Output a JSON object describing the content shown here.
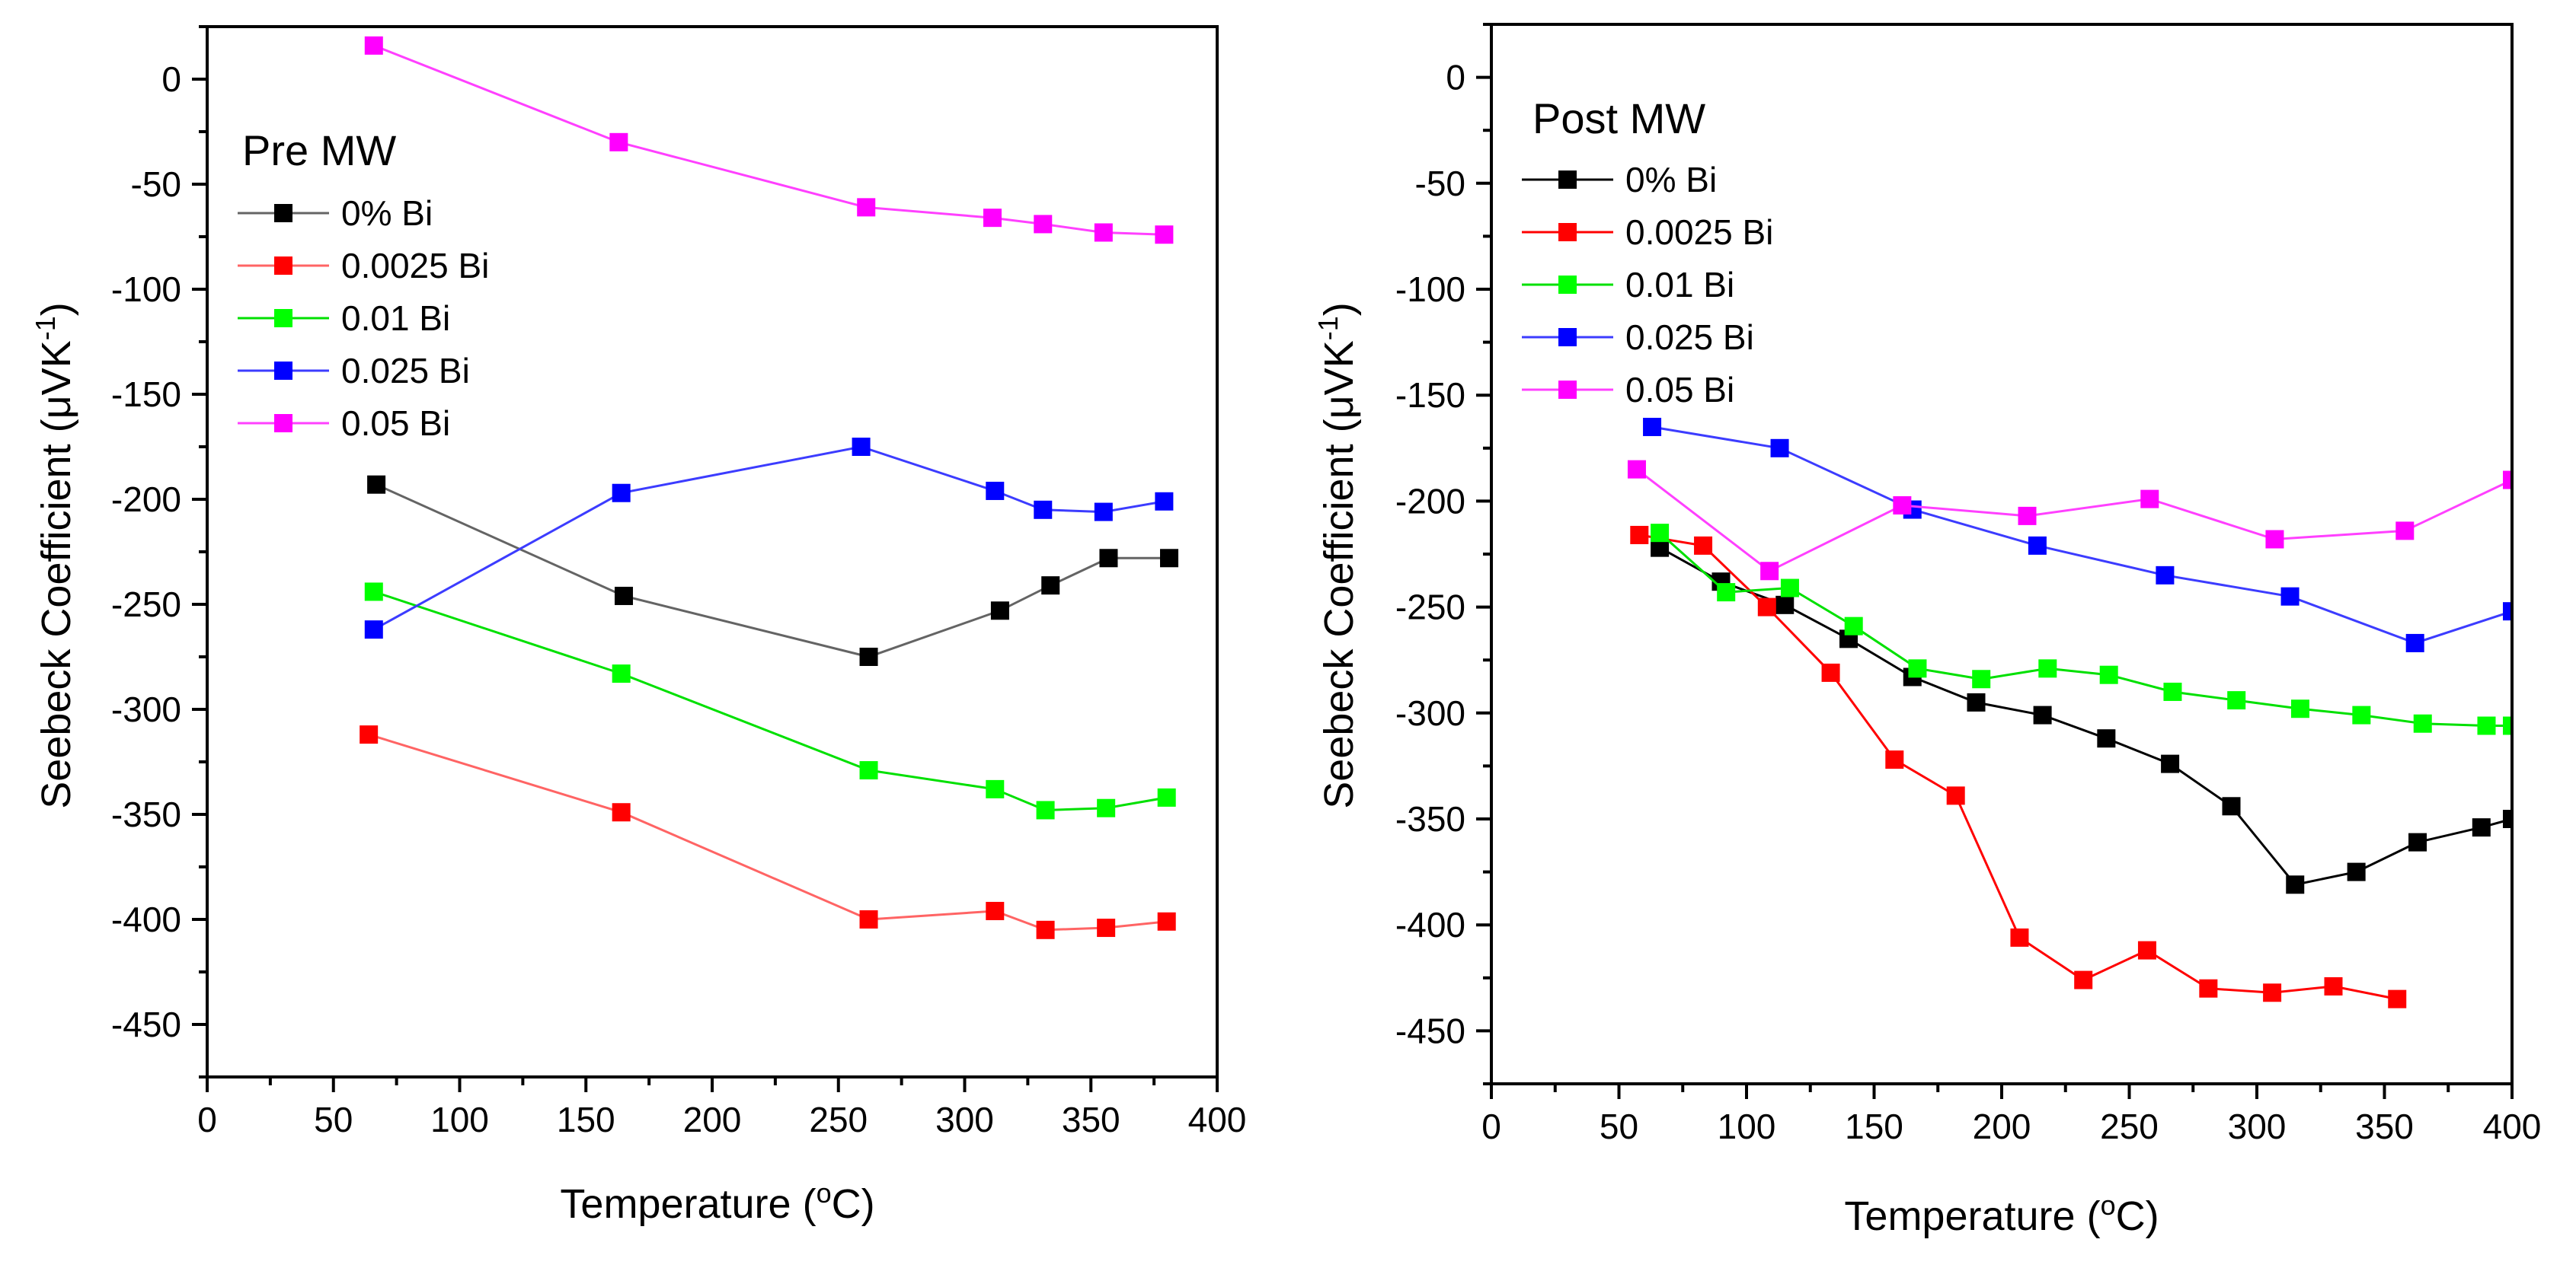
{
  "chart_data": [
    {
      "type": "line",
      "title": "Pre MW",
      "xlabel": "Temperature (",
      "xlabel_sup": "o",
      "xlabel_suffix": "C)",
      "ylabel": "Seebeck Coefficient (μVK",
      "ylabel_sup": "-1",
      "ylabel_suffix": ")",
      "xlim": [
        0,
        400
      ],
      "ylim": [
        -475,
        25
      ],
      "xticks": [
        0,
        50,
        100,
        150,
        200,
        250,
        300,
        350,
        400
      ],
      "xtick_labels": [
        "0",
        "50",
        "100",
        "150",
        "200",
        "250",
        "300",
        "350",
        "400"
      ],
      "yticks": [
        0,
        -50,
        -100,
        -150,
        -200,
        -250,
        -300,
        -350,
        -400,
        -450
      ],
      "ytick_labels": [
        "0",
        "-50",
        "-100",
        "-150",
        "-200",
        "-250",
        "-300",
        "-350",
        "-400",
        "-450"
      ],
      "legend_position": "upper-left",
      "series": [
        {
          "name": "0% Bi",
          "line_color": "#646464",
          "marker_color": "#000000",
          "x": [
            67,
            165,
            262,
            314,
            334,
            357,
            381
          ],
          "y": [
            -193,
            -246,
            -275,
            -253,
            -241,
            -228,
            -228
          ]
        },
        {
          "name": "0.0025 Bi",
          "line_color": "#ff6464",
          "marker_color": "#ff0000",
          "x": [
            64,
            164,
            262,
            312,
            332,
            356,
            380
          ],
          "y": [
            -312,
            -349,
            -400,
            -396,
            -405,
            -404,
            -401
          ]
        },
        {
          "name": "0.01 Bi",
          "line_color": "#00e000",
          "marker_color": "#00ff00",
          "x": [
            66,
            164,
            262,
            312,
            332,
            356,
            380
          ],
          "y": [
            -244,
            -283,
            -329,
            -338,
            -348,
            -347,
            -342
          ]
        },
        {
          "name": "0.025 Bi",
          "line_color": "#3c3cff",
          "marker_color": "#0000ff",
          "x": [
            66,
            164,
            259,
            312,
            331,
            355,
            379
          ],
          "y": [
            -262,
            -197,
            -175,
            -196,
            -205,
            -206,
            -201
          ]
        },
        {
          "name": "0.05 Bi",
          "line_color": "#ff40ff",
          "marker_color": "#ff00ff",
          "x": [
            66,
            163,
            261,
            311,
            331,
            355,
            379
          ],
          "y": [
            16,
            -30,
            -61,
            -66,
            -69,
            -73,
            -74
          ]
        }
      ]
    },
    {
      "type": "line",
      "title": "Post MW",
      "xlabel": "Temperature (",
      "xlabel_sup": "o",
      "xlabel_suffix": "C)",
      "ylabel": "Seebeck Coefficient (μVK",
      "ylabel_sup": "-1",
      "ylabel_suffix": ")",
      "xlim": [
        0,
        400
      ],
      "ylim": [
        -475,
        25
      ],
      "xticks": [
        0,
        50,
        100,
        150,
        200,
        250,
        300,
        350,
        400
      ],
      "xtick_labels": [
        "0",
        "50",
        "100",
        "150",
        "200",
        "250",
        "300",
        "350",
        "400"
      ],
      "yticks": [
        0,
        -50,
        -100,
        -150,
        -200,
        -250,
        -300,
        -350,
        -400,
        -450
      ],
      "ytick_labels": [
        "0",
        "-50",
        "-100",
        "-150",
        "-200",
        "-250",
        "-300",
        "-350",
        "-400",
        "-450"
      ],
      "legend_position": "upper-left",
      "series": [
        {
          "name": "0% Bi",
          "line_color": "#000000",
          "marker_color": "#000000",
          "x": [
            66,
            90,
            115,
            140,
            165,
            190,
            216,
            241,
            266,
            290,
            315,
            339,
            363,
            388,
            400
          ],
          "y": [
            -222,
            -238,
            -249,
            -265,
            -283,
            -295,
            -301,
            -312,
            -324,
            -344,
            -381,
            -375,
            -361,
            -354,
            -350
          ]
        },
        {
          "name": "0.0025 Bi",
          "line_color": "#ff0000",
          "marker_color": "#ff0000",
          "x": [
            58,
            83,
            108,
            133,
            158,
            182,
            207,
            232,
            257,
            281,
            306,
            330,
            355
          ],
          "y": [
            -216,
            -221,
            -250,
            -281,
            -322,
            -339,
            -406,
            -426,
            -412,
            -430,
            -432,
            -429,
            -435
          ]
        },
        {
          "name": "0.01 Bi",
          "line_color": "#00e000",
          "marker_color": "#00ff00",
          "x": [
            66,
            92,
            117,
            142,
            167,
            192,
            218,
            242,
            267,
            292,
            317,
            341,
            365,
            390,
            400
          ],
          "y": [
            -215,
            -243,
            -241,
            -259,
            -279,
            -284,
            -279,
            -282,
            -290,
            -294,
            -298,
            -301,
            -305,
            -306,
            -306
          ]
        },
        {
          "name": "0.025 Bi",
          "line_color": "#3c3cff",
          "marker_color": "#0000ff",
          "x": [
            63,
            113,
            165,
            214,
            264,
            313,
            362,
            400
          ],
          "y": [
            -165,
            -175,
            -204,
            -221,
            -235,
            -245,
            -267,
            -252
          ]
        },
        {
          "name": "0.05 Bi",
          "line_color": "#ff40ff",
          "marker_color": "#ff00ff",
          "x": [
            57,
            109,
            161,
            210,
            258,
            307,
            358,
            400
          ],
          "y": [
            -185,
            -233,
            -202,
            -207,
            -199,
            -218,
            -214,
            -190
          ]
        }
      ]
    }
  ]
}
